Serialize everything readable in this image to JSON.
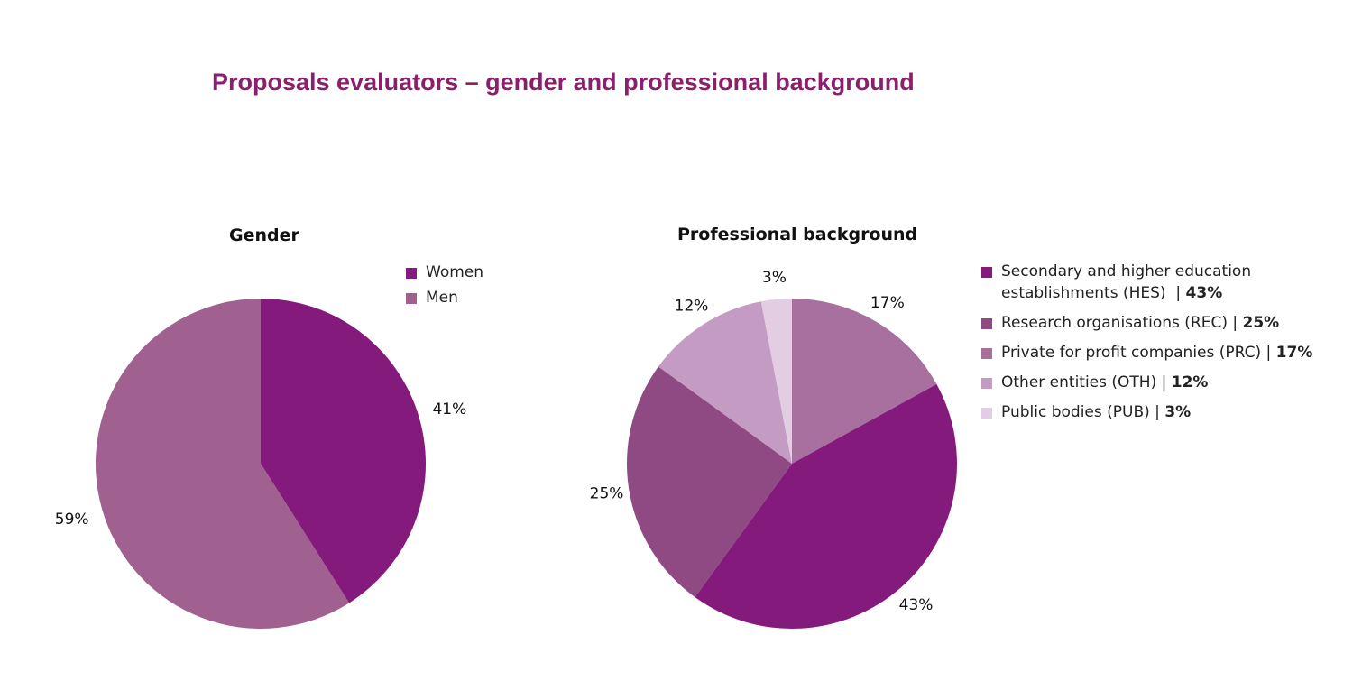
{
  "title": "Proposals evaluators – gender and professional background",
  "chart_data": [
    {
      "type": "pie",
      "title": "Gender",
      "categories": [
        "Women",
        "Men"
      ],
      "values": [
        41,
        59
      ],
      "labels": [
        "41%",
        "59%"
      ],
      "colors": [
        "#841a7c",
        "#a06090"
      ],
      "legend": [
        {
          "label": "Women"
        },
        {
          "label": "Men"
        }
      ],
      "legend_placement": "top-right"
    },
    {
      "type": "pie",
      "title": "Professional background",
      "categories": [
        "PRC",
        "HES",
        "REC",
        "OTH",
        "PUB"
      ],
      "values": [
        17,
        43,
        25,
        12,
        3
      ],
      "labels": [
        "17%",
        "43%",
        "25%",
        "12%",
        "3%"
      ],
      "colors": [
        "#a8709f",
        "#841a7c",
        "#8f4a84",
        "#c39bc3",
        "#e2cde3"
      ],
      "legend": [
        {
          "label": "Secondary and higher education establishments (HES) ",
          "pct": "43%",
          "color": "#841a7c"
        },
        {
          "label": "Research organisations (REC) ",
          "pct": "25%",
          "color": "#8f4a84"
        },
        {
          "label": "Private for profit companies (PRC) ",
          "pct": "17%",
          "color": "#a8709f"
        },
        {
          "label": "Other entities (OTH) ",
          "pct": "12%",
          "color": "#c39bc3"
        },
        {
          "label": "Public bodies (PUB) ",
          "pct": "3%",
          "color": "#e2cde3"
        }
      ],
      "legend_placement": "right"
    }
  ]
}
